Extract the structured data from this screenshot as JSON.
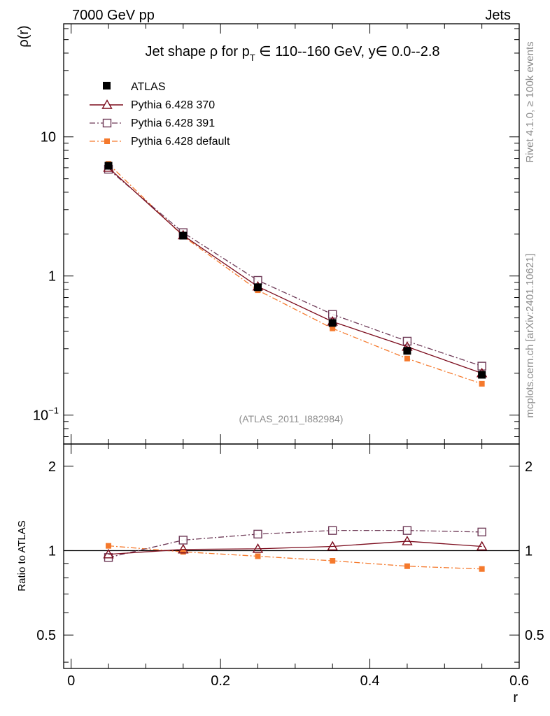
{
  "header": {
    "left": "7000 GeV pp",
    "right": "Jets"
  },
  "side_labels": {
    "rivet": "Rivet 4.1.0, ≥ 100k events",
    "mcplots": "mcplots.cern.ch [arXiv:2401.10621]"
  },
  "colors": {
    "atlas": "#000000",
    "py370": "#7b0b1c",
    "py391": "#6e3a57",
    "pydefault": "#f5792c",
    "watermark": "#8c8c8c"
  },
  "chart_data": {
    "type": "line",
    "title": "Jet shape ρ for p_T ∈ 110--160 GeV, y∈ 0.0--2.8",
    "title_parts": {
      "prefix": "Jet shape ρ for p",
      "subscript": "T",
      "suffix": " ∈ 110--160 GeV, y∈ 0.0--2.8"
    },
    "analysis_label": "(ATLAS_2011_I882984)",
    "xlabel": "r",
    "ylabel_main": "ρ(r)",
    "ylabel_ratio": "Ratio to ATLAS",
    "xlim": [
      -0.01,
      0.6
    ],
    "ylim_main": [
      0.062,
      65
    ],
    "yscale_main": "log",
    "ylim_ratio": [
      0.38,
      2.4
    ],
    "yscale_ratio": "log",
    "x_ticks": [
      0,
      0.2,
      0.4,
      0.6
    ],
    "x_tick_labels": [
      "0",
      "0.2",
      "0.4",
      "0.6"
    ],
    "main_y_ticks": [
      {
        "value": 10,
        "label": "10",
        "exp": ""
      },
      {
        "value": 1,
        "label": "1",
        "exp": ""
      },
      {
        "value": 0.1,
        "label": "10",
        "exp": "−1"
      }
    ],
    "ratio_y_ticks": [
      {
        "value": 2,
        "label": "2"
      },
      {
        "value": 1,
        "label": "1"
      },
      {
        "value": 0.5,
        "label": "0.5"
      }
    ],
    "legend": {
      "placement": "top-left",
      "entries": [
        "ATLAS",
        "Pythia 6.428 370",
        "Pythia 6.428 391",
        "Pythia 6.428 default"
      ]
    },
    "x": [
      0.05,
      0.15,
      0.25,
      0.35,
      0.45,
      0.55
    ],
    "series": [
      {
        "key": "atlas",
        "name": "ATLAS",
        "marker": "filled-square-large",
        "line": "none",
        "values": [
          6.2,
          1.95,
          0.83,
          0.46,
          0.29,
          0.195
        ],
        "ratio": [
          1.0,
          1.0,
          1.0,
          1.0,
          1.0,
          1.0
        ]
      },
      {
        "key": "py370",
        "name": "Pythia 6.428 370",
        "marker": "open-triangle",
        "line": "solid",
        "values": [
          6.0,
          1.96,
          0.84,
          0.47,
          0.31,
          0.2
        ],
        "ratio": [
          0.97,
          1.01,
          1.015,
          1.035,
          1.08,
          1.035
        ]
      },
      {
        "key": "py391",
        "name": "Pythia 6.428 391",
        "marker": "open-square",
        "line": "dashdot",
        "values": [
          5.85,
          2.05,
          0.93,
          0.53,
          0.34,
          0.225
        ],
        "ratio": [
          0.945,
          1.09,
          1.145,
          1.18,
          1.18,
          1.165
        ]
      },
      {
        "key": "pydefault",
        "name": "Pythia 6.428 default",
        "marker": "filled-square-small",
        "line": "dashdot",
        "values": [
          6.4,
          1.93,
          0.79,
          0.42,
          0.255,
          0.168
        ],
        "ratio": [
          1.04,
          0.99,
          0.955,
          0.92,
          0.88,
          0.86
        ]
      }
    ]
  }
}
